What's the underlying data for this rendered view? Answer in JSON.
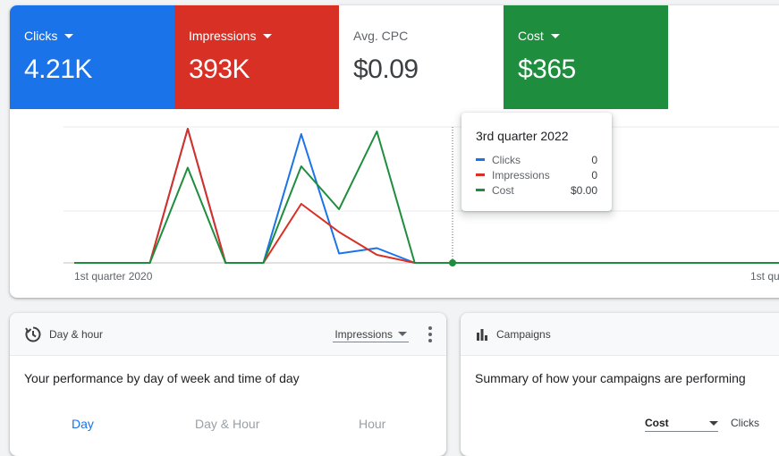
{
  "overview": {
    "metrics": [
      {
        "label": "Clicks",
        "value": "4.21K",
        "color": "#1a73e8",
        "has_dropdown": true
      },
      {
        "label": "Impressions",
        "value": "393K",
        "color": "#d93025",
        "has_dropdown": true
      },
      {
        "label": "Avg. CPC",
        "value": "$0.09",
        "color": "#ffffff",
        "has_dropdown": false
      },
      {
        "label": "Cost",
        "value": "$365",
        "color": "#1e8e3e",
        "has_dropdown": true
      }
    ],
    "tooltip": {
      "title": "3rd quarter 2022",
      "rows": [
        {
          "name": "Clicks",
          "value": "0",
          "color": "#1a73e8"
        },
        {
          "name": "Impressions",
          "value": "0",
          "color": "#d93025"
        },
        {
          "name": "Cost",
          "value": "$0.00",
          "color": "#1e8e3e"
        }
      ]
    }
  },
  "chart_data": {
    "type": "line",
    "x_tick_labels": [
      "1st quarter 2020",
      "1st qu"
    ],
    "ylim": [
      0,
      1
    ],
    "grid": true,
    "series": [
      {
        "name": "Clicks",
        "color": "#1a73e8",
        "values": [
          0,
          0,
          0,
          1.0,
          0,
          0,
          0.96,
          0.07,
          0.11,
          0,
          0,
          0,
          0,
          0,
          0,
          0,
          0,
          0,
          0,
          0
        ]
      },
      {
        "name": "Impressions",
        "color": "#d93025",
        "values": [
          0,
          0,
          0,
          1.0,
          0,
          0,
          0.44,
          0.23,
          0.06,
          0,
          0,
          0,
          0,
          0,
          0,
          0,
          0,
          0,
          0,
          0
        ]
      },
      {
        "name": "Cost",
        "color": "#1e8e3e",
        "values": [
          0,
          0,
          0,
          0.71,
          0,
          0,
          0.72,
          0.4,
          0.98,
          0,
          0,
          0,
          0,
          0,
          0,
          0,
          0,
          0,
          0,
          0
        ]
      }
    ],
    "highlight_index": 10
  },
  "dayhour": {
    "title": "Day & hour",
    "metric_select": "Impressions",
    "description": "Your performance by day of week and time of day",
    "tabs": [
      "Day",
      "Day & Hour",
      "Hour"
    ]
  },
  "campaigns": {
    "title": "Campaigns",
    "description": "Summary of how your campaigns are performing",
    "select_1": "Cost",
    "select_2": "Clicks"
  }
}
